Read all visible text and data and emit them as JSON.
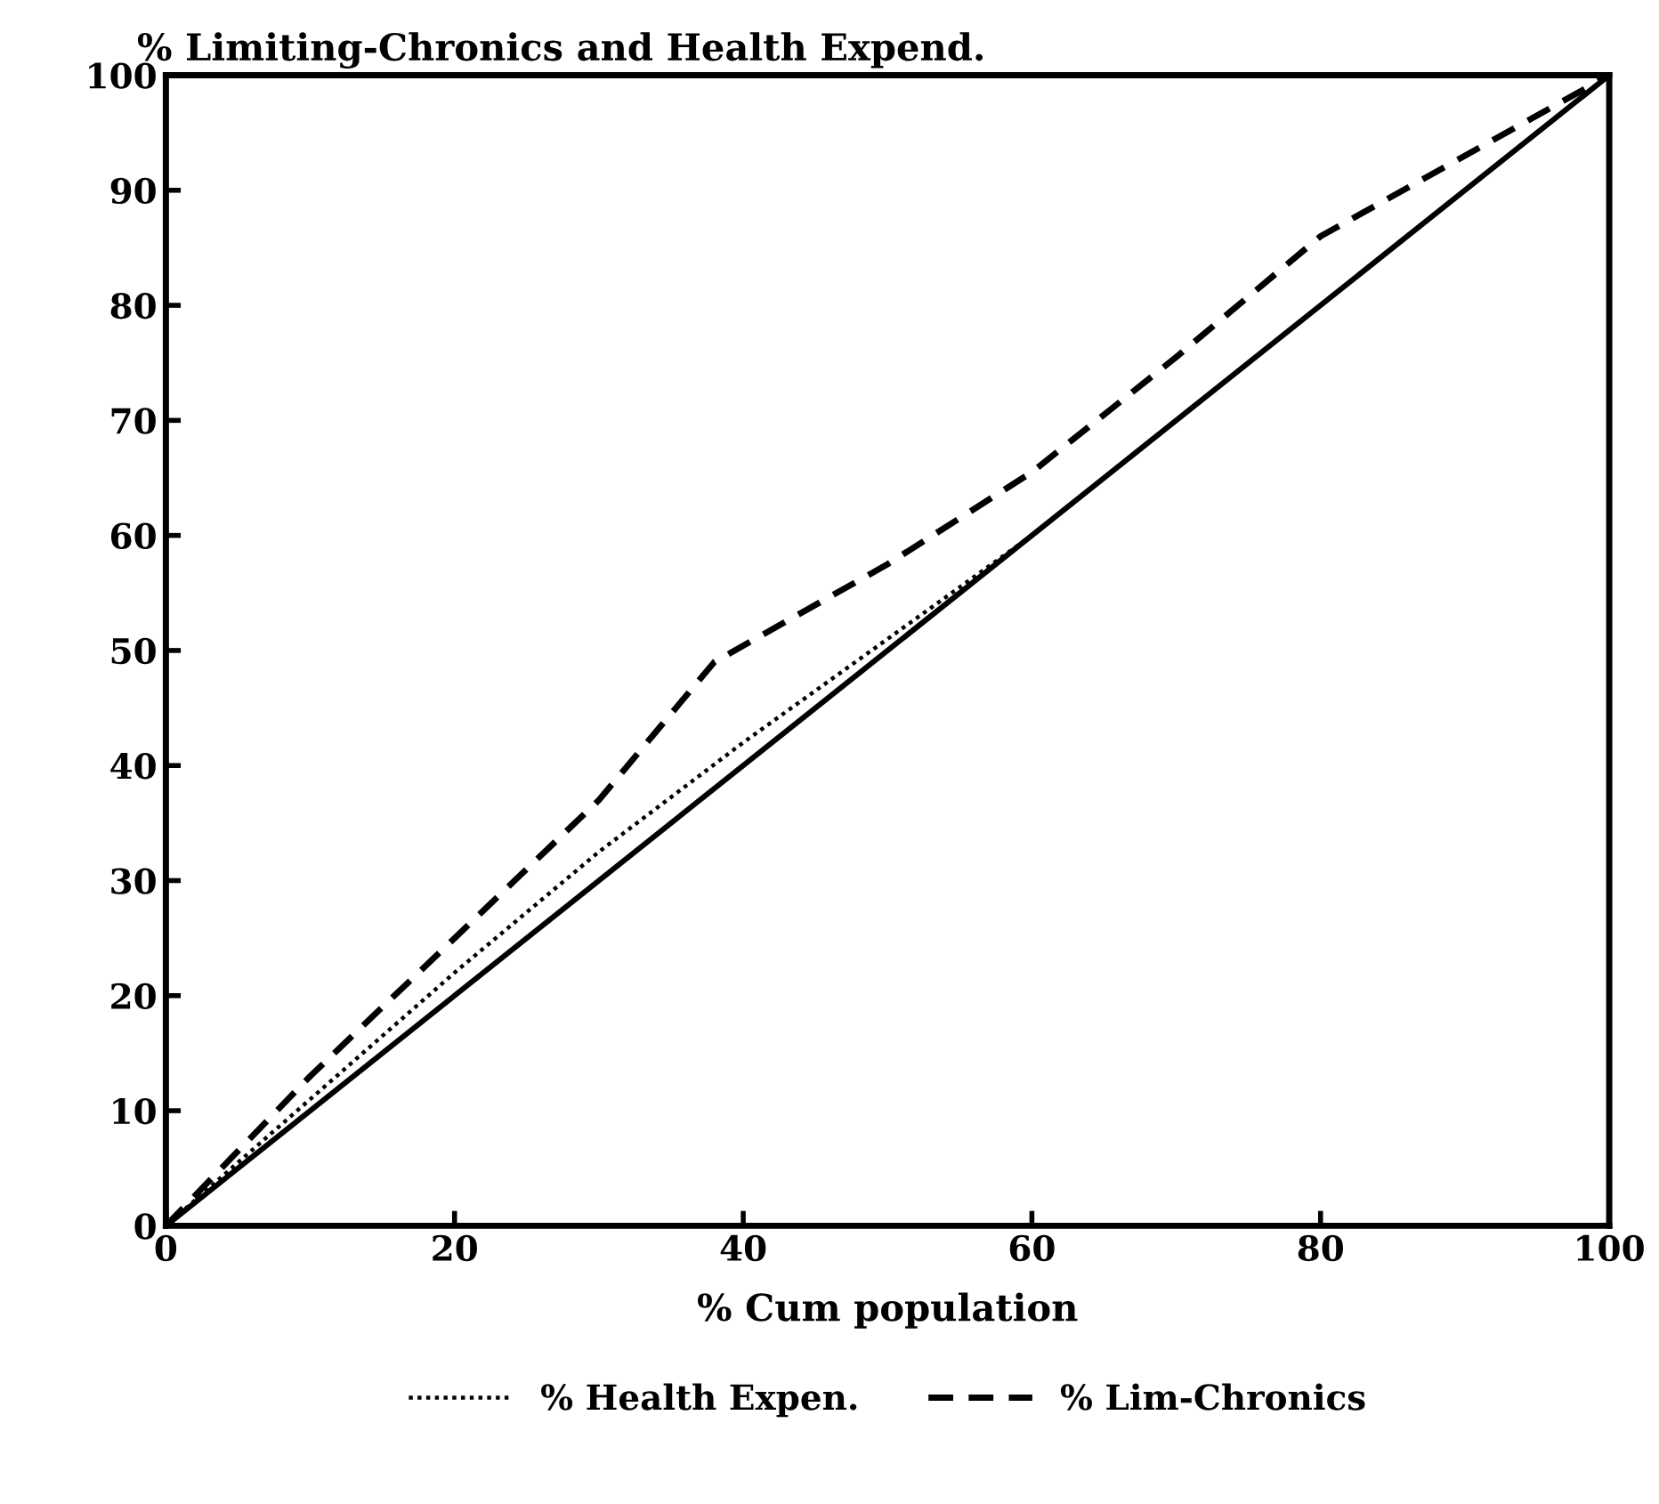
{
  "chart_data": {
    "type": "line",
    "title": "% Limiting-Chronics and Health Expend.",
    "xlabel": "% Cum population",
    "xlim": [
      0,
      100
    ],
    "ylim": [
      0,
      100
    ],
    "xticks": [
      0,
      20,
      40,
      60,
      80,
      100
    ],
    "yticks": [
      0,
      10,
      20,
      30,
      40,
      50,
      60,
      70,
      80,
      90,
      100
    ],
    "grid": false,
    "legend": "bottom",
    "series": [
      {
        "color": "#000000",
        "line_style": "solid",
        "x": [
          0,
          100
        ],
        "values": [
          0,
          100
        ]
      },
      {
        "name": "% Health Expen.",
        "color": "#000000",
        "line_style": "dotted",
        "x": [
          0,
          10,
          20,
          30,
          40,
          50,
          55,
          60,
          70,
          80,
          90,
          100
        ],
        "values": [
          0,
          11,
          22,
          32.5,
          42,
          51,
          55.5,
          60,
          70,
          80,
          90,
          100
        ]
      },
      {
        "name": "% Lim-Chronics",
        "color": "#000000",
        "line_style": "dashed",
        "x": [
          0,
          10,
          20,
          30,
          38,
          50,
          60,
          70,
          80,
          90,
          100
        ],
        "values": [
          0,
          13,
          25,
          37,
          49,
          57.5,
          65.5,
          75.5,
          86,
          93,
          100
        ]
      }
    ]
  }
}
